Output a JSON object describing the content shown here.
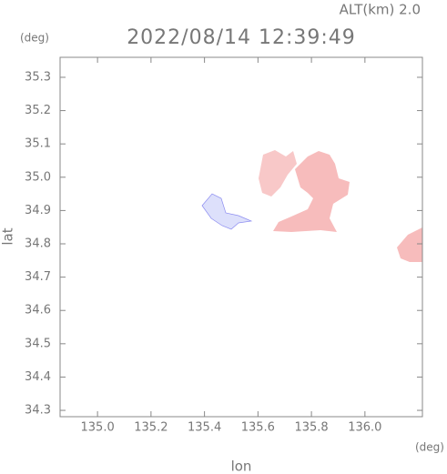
{
  "chart_data": {
    "type": "map",
    "title": "2022/08/14 12:39:49",
    "subtitle": "ALT(km) 2.0",
    "y_unit": "(deg)",
    "x_unit": "(deg)",
    "xlabel": "lon",
    "ylabel": "lat",
    "xlim": [
      134.86,
      136.215
    ],
    "ylim": [
      34.281,
      35.36
    ],
    "xticks": [
      {
        "value": 135,
        "label": "135.0"
      },
      135.2,
      135.4,
      135.6,
      135.8,
      {
        "value": 136,
        "label": "136.0"
      }
    ],
    "yticks": [
      34.3,
      34.4,
      34.5,
      34.6,
      34.7,
      34.8,
      34.9,
      {
        "value": 35,
        "label": "35.0"
      },
      35.1,
      35.2,
      35.3
    ]
  }
}
